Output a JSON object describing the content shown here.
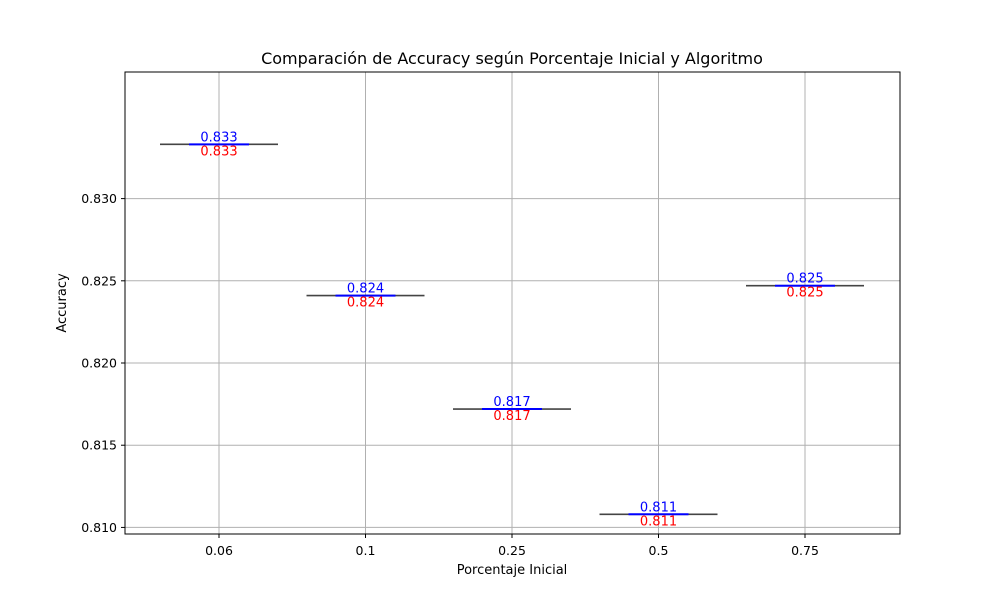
{
  "chart_data": {
    "type": "box",
    "title": "Comparación de Accuracy según Porcentaje Inicial y Algoritmo",
    "xlabel": "Porcentaje Inicial",
    "ylabel": "Accuracy",
    "categories": [
      "0.06",
      "0.1",
      "0.25",
      "0.5",
      "0.75"
    ],
    "values": [
      0.8333,
      0.8241,
      0.8172,
      0.8108,
      0.8247
    ],
    "labels_top": [
      "0.833",
      "0.824",
      "0.817",
      "0.811",
      "0.825"
    ],
    "labels_bottom": [
      "0.833",
      "0.824",
      "0.817",
      "0.811",
      "0.825"
    ],
    "ylim": [
      0.8096,
      0.8377
    ],
    "yticks": [
      0.81,
      0.815,
      0.82,
      0.825,
      0.83
    ],
    "ytick_labels": [
      "0.810",
      "0.815",
      "0.820",
      "0.825",
      "0.830"
    ],
    "grid": true,
    "colors": {
      "box_line": "#444444",
      "median": "#0000ff",
      "label_top": "#0000ff",
      "label_bottom": "#ff0000",
      "grid": "#b0b0b0",
      "axes": "#000000"
    }
  }
}
